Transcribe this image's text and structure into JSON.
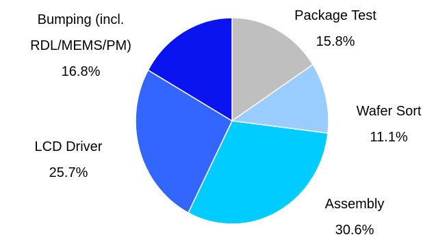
{
  "chart_data": {
    "type": "pie",
    "categories": [
      "Package Test",
      "Wafer Sort",
      "Assembly",
      "LCD Driver",
      "Bumping (incl. RDL/MEMS/PM)"
    ],
    "values": [
      15.8,
      11.1,
      30.6,
      25.7,
      16.8
    ],
    "value_labels": [
      "15.8%",
      "11.1%",
      "30.6%",
      "25.7%",
      "16.8%"
    ],
    "colors": [
      "#bfbfbf",
      "#99ccff",
      "#00ccff",
      "#3366ff",
      "#0a14f0"
    ]
  }
}
